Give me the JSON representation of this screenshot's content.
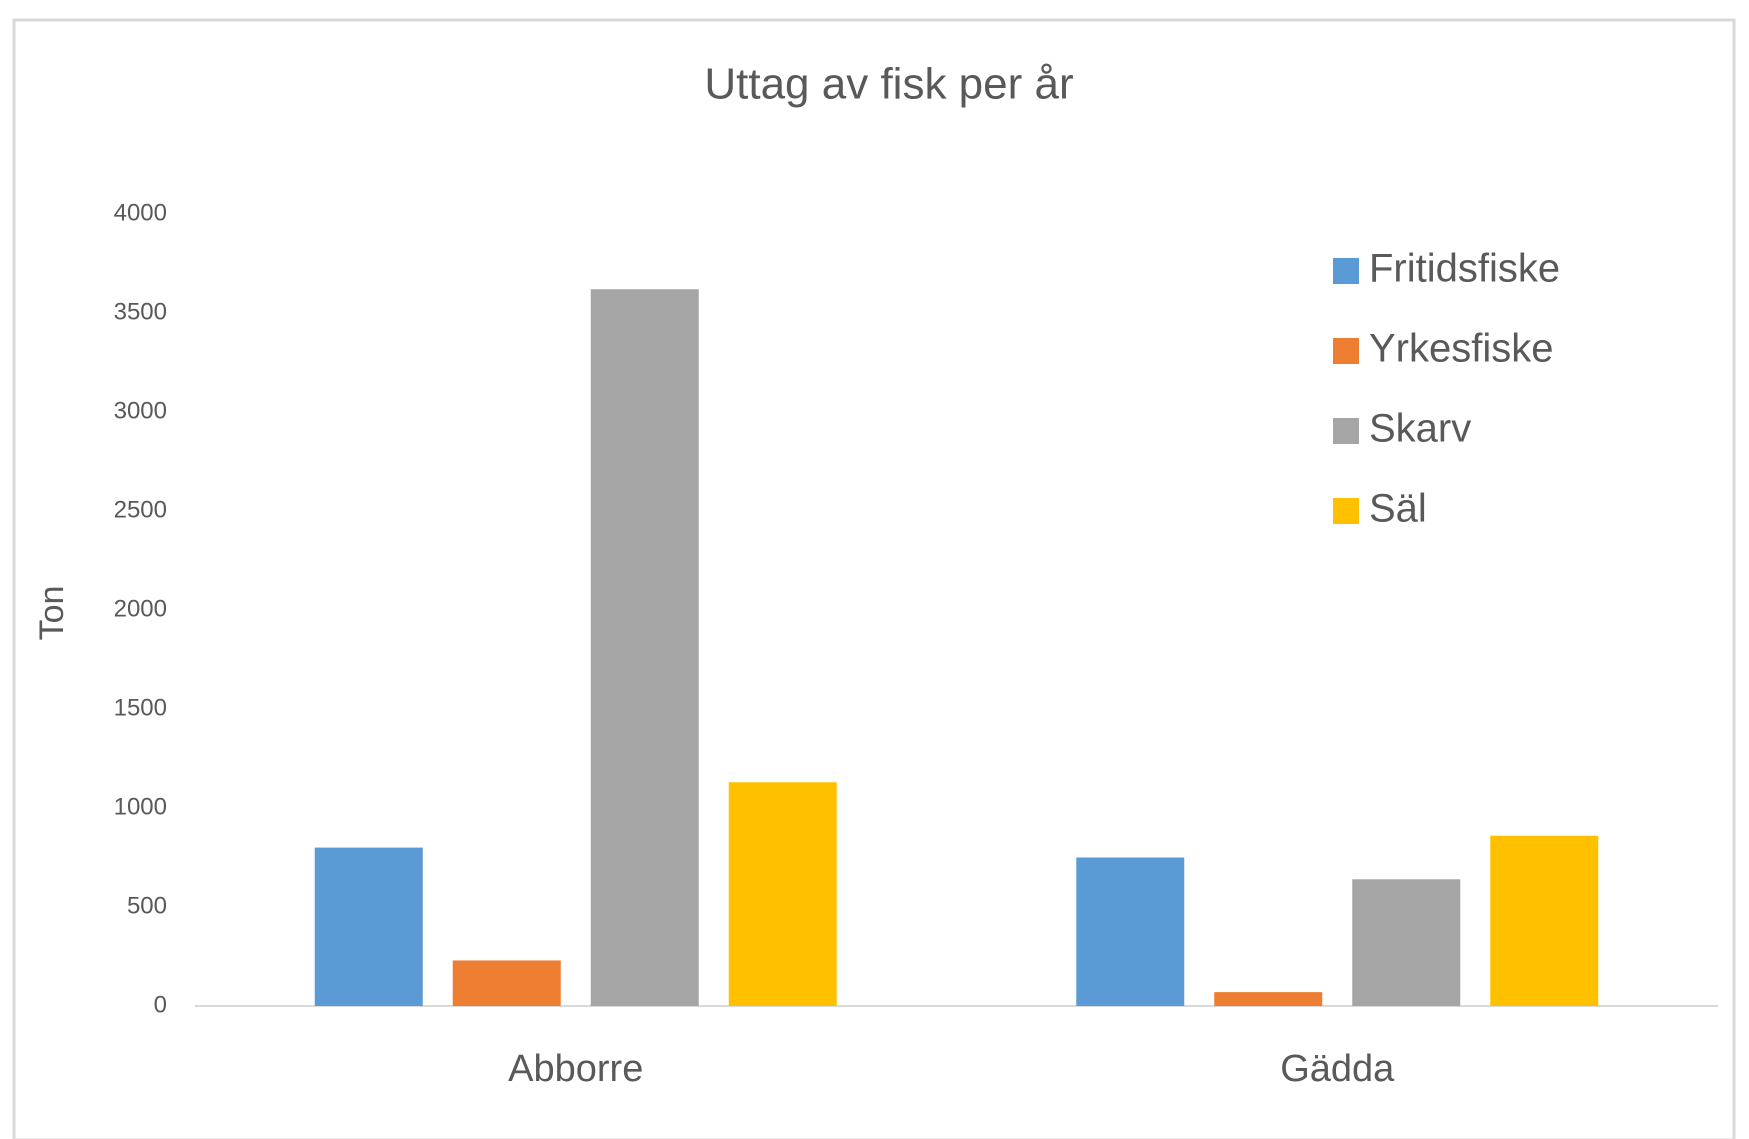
{
  "chart_data": {
    "type": "bar",
    "title": "Uttag av fisk per år",
    "y_label": "Ton",
    "categories": [
      "Abborre",
      "Gädda"
    ],
    "series": [
      {
        "name": "Fritidsfiske",
        "color": "#5b9bd5",
        "values": [
          800,
          750
        ]
      },
      {
        "name": "Yrkesfiske",
        "color": "#ed7d31",
        "values": [
          230,
          70
        ]
      },
      {
        "name": "Skarv",
        "color": "#a5a5a5",
        "values": [
          3620,
          640
        ]
      },
      {
        "name": "Säl",
        "color": "#ffc000",
        "values": [
          1130,
          860
        ]
      }
    ],
    "ylim": [
      0,
      4000
    ],
    "yticks": [
      0,
      500,
      1000,
      1500,
      2000,
      2500,
      3000,
      3500,
      4000
    ],
    "grid": false,
    "legend": "upper right"
  }
}
